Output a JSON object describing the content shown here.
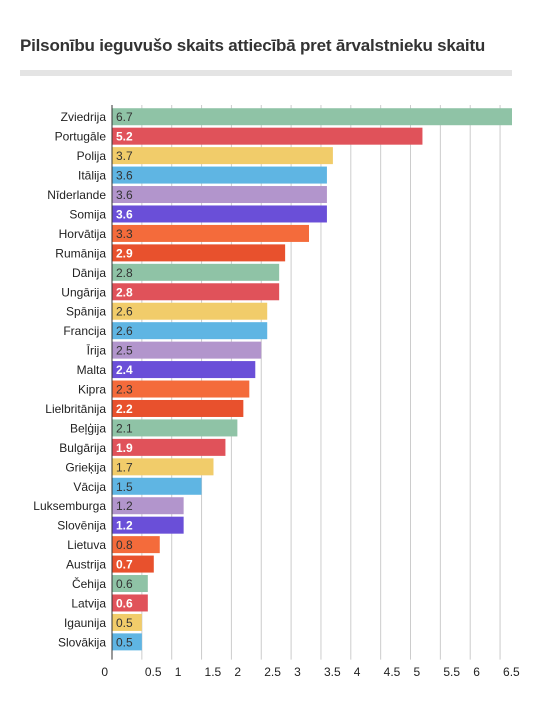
{
  "chart_data": {
    "type": "bar",
    "orientation": "horizontal",
    "title": "Pilsonību ieguvušo skaits attiecībā pret ārvalstnieku skaitu",
    "categories": [
      "Zviedrija",
      "Portugāle",
      "Polija",
      "Itālija",
      "Nīderlande",
      "Somija",
      "Horvātija",
      "Rumānija",
      "Dānija",
      "Ungārija",
      "Spānija",
      "Francija",
      "Īrija",
      "Malta",
      "Kipra",
      "Lielbritānija",
      "Beļģija",
      "Bulgārija",
      "Grieķija",
      "Vācija",
      "Luksemburga",
      "Slovēnija",
      "Lietuva",
      "Austrija",
      "Čehija",
      "Latvija",
      "Igaunija",
      "Slovākija"
    ],
    "values": [
      6.7,
      5.2,
      3.7,
      3.6,
      3.6,
      3.6,
      3.3,
      2.9,
      2.8,
      2.8,
      2.6,
      2.6,
      2.5,
      2.4,
      2.3,
      2.2,
      2.1,
      1.9,
      1.7,
      1.5,
      1.2,
      1.2,
      0.8,
      0.7,
      0.6,
      0.6,
      0.5,
      0.5
    ],
    "value_labels": [
      "6.7",
      "5.2",
      "3.7",
      "3.6",
      "3.6",
      "3.6",
      "3.3",
      "2.9",
      "2.8",
      "2.8",
      "2.6",
      "2.6",
      "2.5",
      "2.4",
      "2.3",
      "2.2",
      "2.1",
      "1.9",
      "1.7",
      "1.5",
      "1.2",
      "1.2",
      "0.8",
      "0.7",
      "0.6",
      "0.6",
      "0.5",
      "0.5"
    ],
    "colors": [
      "#8fc3a6",
      "#e0525a",
      "#f1cc6a",
      "#5fb5e3",
      "#b295cc",
      "#6a4fd8",
      "#f46b3b",
      "#e8512d",
      "#8fc3a6",
      "#e0525a",
      "#f1cc6a",
      "#5fb5e3",
      "#b295cc",
      "#6a4fd8",
      "#f46b3b",
      "#e8512d",
      "#8fc3a6",
      "#e0525a",
      "#f1cc6a",
      "#5fb5e3",
      "#b295cc",
      "#6a4fd8",
      "#f46b3b",
      "#e8512d",
      "#8fc3a6",
      "#e0525a",
      "#f1cc6a",
      "#5fb5e3"
    ],
    "label_colors": [
      "#333333",
      "#ffffff",
      "#333333",
      "#333333",
      "#333333",
      "#ffffff",
      "#333333",
      "#ffffff",
      "#333333",
      "#ffffff",
      "#333333",
      "#333333",
      "#333333",
      "#ffffff",
      "#333333",
      "#ffffff",
      "#333333",
      "#ffffff",
      "#333333",
      "#333333",
      "#333333",
      "#ffffff",
      "#333333",
      "#ffffff",
      "#333333",
      "#ffffff",
      "#333333",
      "#333333"
    ],
    "label_bold": [
      false,
      true,
      false,
      false,
      false,
      true,
      false,
      true,
      false,
      true,
      false,
      false,
      false,
      true,
      false,
      true,
      false,
      true,
      false,
      false,
      false,
      true,
      false,
      true,
      false,
      true,
      false,
      false
    ],
    "xticks": [
      0,
      0.5,
      1,
      1.5,
      2,
      2.5,
      3,
      3.5,
      4,
      4.5,
      5,
      5.5,
      6,
      6.5
    ],
    "xtick_labels": [
      "0",
      "0.5",
      "1",
      "1.5",
      "2",
      "2.5",
      "3",
      "3.5",
      "4",
      "4.5",
      "5",
      "5.5",
      "6",
      "6.5"
    ],
    "xlim": [
      0,
      6.7
    ],
    "grid": true,
    "xlabel": "",
    "ylabel": "",
    "grid_color": "#cccccc",
    "axis_color": "#333333"
  }
}
